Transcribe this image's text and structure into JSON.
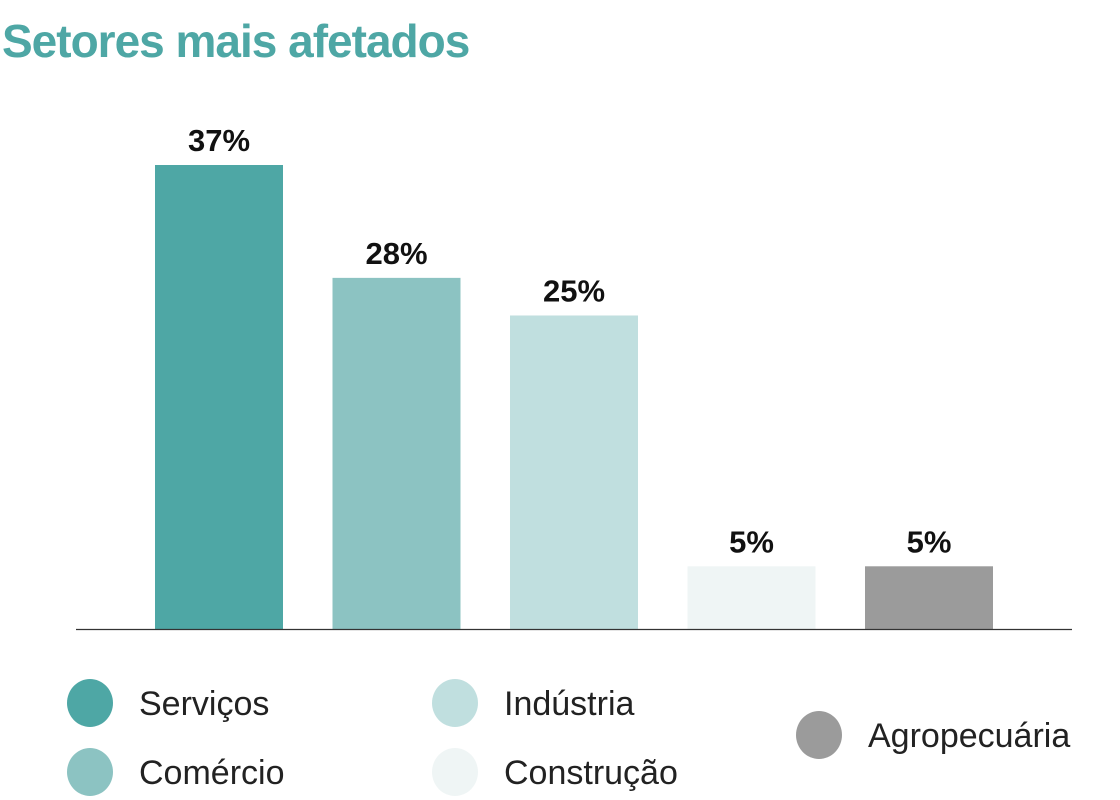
{
  "chart_data": {
    "type": "bar",
    "title": "Setores mais afetados",
    "categories": [
      "Serviços",
      "Comércio",
      "Indústria",
      "Construção",
      "Agropecuária"
    ],
    "values": [
      37,
      28,
      25,
      5,
      5
    ],
    "data_labels": [
      "37%",
      "28%",
      "25%",
      "5%",
      "5%"
    ],
    "colors": [
      "#4ea7a5",
      "#8cc3c2",
      "#c0dfdf",
      "#eff5f5",
      "#9b9b9b"
    ],
    "ylim": [
      0,
      37
    ],
    "grid": false,
    "legend_position": "bottom",
    "xlabel": "",
    "ylabel": ""
  }
}
